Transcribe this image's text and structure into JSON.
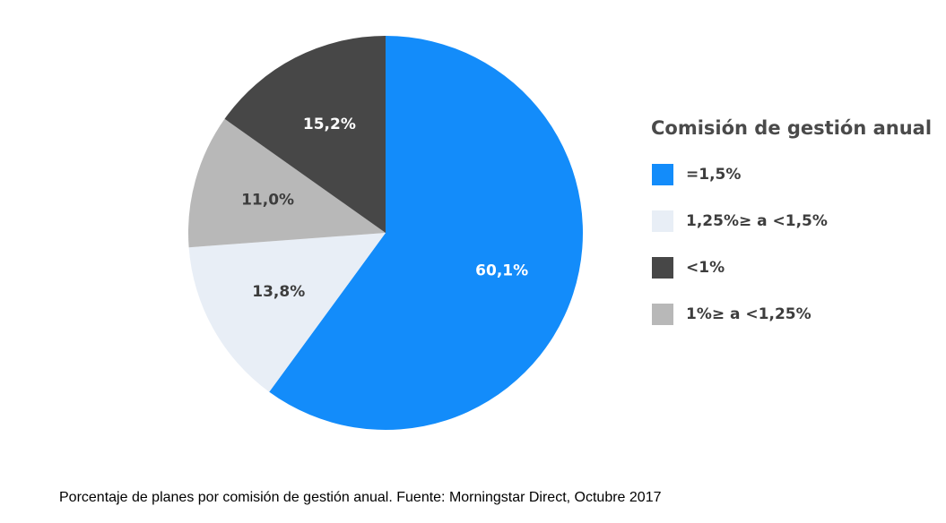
{
  "chart_data": {
    "type": "pie",
    "title": "",
    "legend_title": "Comisión de gestión anual",
    "legend_position": "right",
    "start_angle_deg": 0,
    "direction": "clockwise",
    "slices": [
      {
        "category": "=1,5%",
        "value": 60.1,
        "label": "60,1%",
        "color": "#138cfa",
        "label_color": "#ffffff"
      },
      {
        "category": "1,25%≥ a <1,5%",
        "value": 13.8,
        "label": "13,8%",
        "color": "#e8eef6",
        "label_color": "#3d3d3d"
      },
      {
        "category": "1%≥ a <1,25%",
        "value": 11.0,
        "label": "11,0%",
        "color": "#b8b8b8",
        "label_color": "#3d3d3d"
      },
      {
        "category": "<1%",
        "value": 15.2,
        "label": "15,2%",
        "color": "#474747",
        "label_color": "#ffffff"
      }
    ],
    "legend_order": [
      "=1,5%",
      "1,25%≥ a <1,5%",
      "<1%",
      "1%≥ a <1,25%"
    ]
  },
  "caption": "Porcentaje de planes por comisión de gestión anual. Fuente: Morningstar Direct, Octubre 2017"
}
